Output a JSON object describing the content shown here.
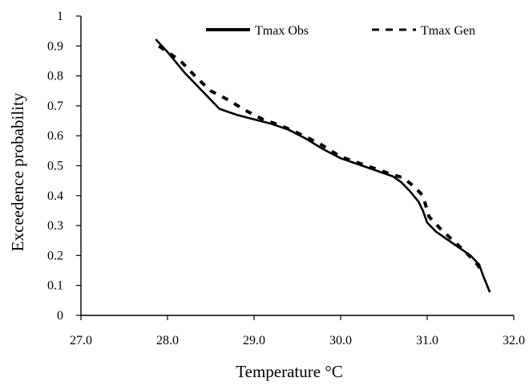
{
  "chart_data": {
    "type": "line",
    "title": "",
    "xlabel": "Temperature °C",
    "ylabel": "Exceedence probability",
    "xlim": [
      27.0,
      32.0
    ],
    "ylim": [
      0,
      1
    ],
    "x_ticks": [
      "27.0",
      "28.0",
      "29.0",
      "30.0",
      "31.0",
      "32.0"
    ],
    "y_ticks": [
      "0",
      "0.1",
      "0.2",
      "0.3",
      "0.4",
      "0.5",
      "0.6",
      "0.7",
      "0.8",
      "0.9",
      "1"
    ],
    "grid": false,
    "legend_position": "top-right",
    "series": [
      {
        "name": "Tmax Obs",
        "style": "solid",
        "color": "#000000",
        "x": [
          27.87,
          28.0,
          28.2,
          28.4,
          28.6,
          28.8,
          29.0,
          29.2,
          29.4,
          29.6,
          29.8,
          30.0,
          30.2,
          30.4,
          30.6,
          30.7,
          30.8,
          30.9,
          30.95,
          31.0,
          31.1,
          31.2,
          31.3,
          31.4,
          31.5,
          31.6,
          31.65,
          31.72
        ],
        "y": [
          0.92,
          0.88,
          0.81,
          0.75,
          0.69,
          0.67,
          0.655,
          0.64,
          0.62,
          0.59,
          0.555,
          0.525,
          0.505,
          0.485,
          0.465,
          0.445,
          0.415,
          0.38,
          0.35,
          0.31,
          0.28,
          0.26,
          0.24,
          0.22,
          0.2,
          0.17,
          0.13,
          0.08
        ]
      },
      {
        "name": "Tmax Gen",
        "style": "dashed",
        "color": "#000000",
        "x": [
          27.9,
          28.15,
          28.35,
          28.5,
          28.7,
          28.9,
          29.1,
          29.3,
          29.5,
          29.75,
          30.0,
          30.2,
          30.4,
          30.6,
          30.72,
          30.85,
          30.95,
          31.02,
          31.15,
          31.3,
          31.45,
          31.58,
          31.65
        ],
        "y": [
          0.9,
          0.85,
          0.79,
          0.75,
          0.72,
          0.685,
          0.655,
          0.635,
          0.61,
          0.575,
          0.53,
          0.51,
          0.49,
          0.47,
          0.46,
          0.43,
          0.4,
          0.33,
          0.29,
          0.25,
          0.21,
          0.17,
          0.14
        ]
      }
    ]
  }
}
